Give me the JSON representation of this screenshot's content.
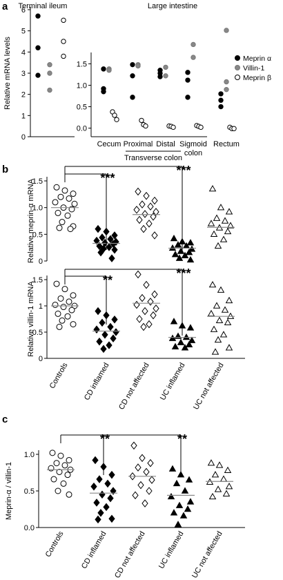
{
  "chart_data": [
    {
      "panel": "a",
      "type": "scatter",
      "ylabel": "Relative mRNA levels",
      "ylim": [
        0,
        6
      ],
      "yticks": [
        0,
        1,
        2,
        3,
        4,
        5,
        6
      ],
      "group_titles": [
        "Terminal ileum",
        "Large intestine"
      ],
      "categories": [
        "Cecum",
        "Proximal",
        "Distal",
        "Sigmoid\ncolon",
        "Rectum"
      ],
      "bracket_label": "Transverse colon",
      "legend": {
        "position": "right",
        "entries": [
          {
            "name": "Meprin α",
            "color": "#000000",
            "fill": "#000000"
          },
          {
            "name": "Villin-1",
            "color": "#777777",
            "fill": "#888888"
          },
          {
            "name": "Meprin β",
            "color": "#000000",
            "fill": "#ffffff"
          }
        ]
      },
      "ileum": {
        "meprin_alpha": [
          5.7,
          4.2,
          2.9
        ],
        "villin1": [
          3.4,
          3.0,
          2.2
        ],
        "meprin_beta": [
          5.5,
          4.5,
          3.8
        ]
      },
      "colon": {
        "meprin_alpha": [
          [
            1.38,
            0.92,
            0.85
          ],
          [
            1.48,
            1.22,
            0.72
          ],
          [
            1.35,
            1.28,
            1.2
          ],
          [
            1.3,
            1.12,
            0.72
          ],
          [
            0.8,
            0.65,
            0.5
          ]
        ],
        "villin1": [
          [
            1.38,
            1.35
          ],
          [
            1.48,
            1.45
          ],
          [
            1.42,
            1.22
          ],
          [
            1.95,
            1.65
          ],
          [
            2.28,
            1.08,
            0.9
          ]
        ],
        "meprin_beta": [
          [
            0.38,
            0.3,
            0.2
          ],
          [
            0.18,
            0.08,
            0.05
          ],
          [
            0.05,
            0.04,
            0.02
          ],
          [
            0.06,
            0.04,
            0.02
          ],
          [
            0.02,
            -0.01,
            -0.01
          ]
        ]
      }
    },
    {
      "panel": "b",
      "type": "scatter",
      "ylabel": "Relative meprin-α mRNA",
      "ylim": [
        0,
        1.5
      ],
      "yticks": [
        0,
        0.5,
        1,
        1.5
      ],
      "groups": [
        "Controls",
        "CD inflamed",
        "CD not affected",
        "UC inflamed",
        "UC not affected"
      ],
      "markers": [
        "circle-open",
        "diamond-filled",
        "diamond-open",
        "triangle-filled",
        "triangle-open"
      ],
      "medians": [
        1.0,
        0.33,
        0.87,
        0.24,
        0.63
      ],
      "significance": [
        {
          "label": "***",
          "from": 0,
          "to": 1
        },
        {
          "label": "***",
          "from": 0,
          "to": 3
        }
      ],
      "values": [
        [
          1.38,
          1.32,
          1.26,
          1.2,
          1.17,
          1.1,
          1.07,
          1.0,
          0.97,
          0.9,
          0.85,
          0.73,
          0.65,
          0.62,
          0.6
        ],
        [
          0.6,
          0.55,
          0.48,
          0.44,
          0.41,
          0.38,
          0.36,
          0.34,
          0.32,
          0.28,
          0.26,
          0.23,
          0.21,
          0.16,
          0.05
        ],
        [
          1.3,
          1.22,
          1.13,
          1.06,
          1.02,
          0.96,
          0.92,
          0.88,
          0.83,
          0.77,
          0.7,
          0.6,
          0.48
        ],
        [
          0.42,
          0.36,
          0.34,
          0.3,
          0.28,
          0.24,
          0.22,
          0.18,
          0.16,
          0.12,
          0.1,
          0.05,
          0.02
        ],
        [
          1.35,
          1.0,
          0.92,
          0.8,
          0.75,
          0.7,
          0.66,
          0.62,
          0.55,
          0.5,
          0.4,
          0.28
        ]
      ]
    },
    {
      "panel": "b",
      "type": "scatter",
      "ylabel": "Relative villin-1 mRNA",
      "ylim": [
        0,
        1.5
      ],
      "yticks": [
        0,
        0.5,
        1,
        1.5
      ],
      "groups": [
        "Controls",
        "CD inflamed",
        "CD not affected",
        "UC inflamed",
        "UC not affected"
      ],
      "markers": [
        "circle-open",
        "diamond-filled",
        "diamond-open",
        "triangle-filled",
        "triangle-open"
      ],
      "medians": [
        1.0,
        0.52,
        1.05,
        0.4,
        0.8
      ],
      "significance": [
        {
          "label": "**",
          "from": 0,
          "to": 1
        },
        {
          "label": "***",
          "from": 0,
          "to": 3
        }
      ],
      "values": [
        [
          1.42,
          1.32,
          1.2,
          1.14,
          1.08,
          1.02,
          1.0,
          0.98,
          0.92,
          0.85,
          0.8,
          0.72,
          0.65,
          0.6
        ],
        [
          0.9,
          0.82,
          0.74,
          0.68,
          0.6,
          0.55,
          0.5,
          0.45,
          0.38,
          0.32,
          0.25,
          0.18
        ],
        [
          1.6,
          1.4,
          1.22,
          1.15,
          1.08,
          1.02,
          0.95,
          0.9,
          0.82,
          0.75,
          0.65,
          0.6
        ],
        [
          0.7,
          0.62,
          0.58,
          0.42,
          0.4,
          0.38,
          0.34,
          0.3,
          0.26,
          0.22,
          0.2
        ],
        [
          1.4,
          1.3,
          1.1,
          1.0,
          0.92,
          0.85,
          0.8,
          0.72,
          0.68,
          0.55,
          0.45,
          0.35,
          0.2,
          0.12
        ]
      ]
    },
    {
      "panel": "c",
      "type": "scatter",
      "ylabel": "Meprin-α / villin-1",
      "ylim": [
        0,
        1.0
      ],
      "yticks": [
        0,
        0.5,
        1.0
      ],
      "groups": [
        "Controls",
        "CD inflamed",
        "CD not affected",
        "UC inflamed",
        "UC not affected"
      ],
      "markers": [
        "circle-open",
        "diamond-filled",
        "diamond-open",
        "triangle-filled",
        "triangle-open"
      ],
      "medians": [
        0.79,
        0.47,
        0.7,
        0.44,
        0.63
      ],
      "significance": [
        {
          "label": "**",
          "from": 0,
          "to": 1
        },
        {
          "label": "**",
          "from": 0,
          "to": 3
        }
      ],
      "values": [
        [
          1.02,
          0.98,
          0.92,
          0.88,
          0.85,
          0.81,
          0.79,
          0.76,
          0.72,
          0.66,
          0.6,
          0.5,
          0.45
        ],
        [
          0.92,
          0.83,
          0.72,
          0.66,
          0.6,
          0.56,
          0.5,
          0.45,
          0.4,
          0.34,
          0.28,
          0.2,
          0.12,
          0.11
        ],
        [
          1.12,
          0.95,
          0.88,
          0.82,
          0.76,
          0.7,
          0.65,
          0.58,
          0.5,
          0.44,
          0.33
        ],
        [
          0.8,
          0.72,
          0.65,
          0.6,
          0.5,
          0.42,
          0.35,
          0.3,
          0.25,
          0.2,
          0.16,
          0.04
        ],
        [
          0.88,
          0.85,
          0.78,
          0.72,
          0.66,
          0.62,
          0.56,
          0.52,
          0.46,
          0.42
        ]
      ]
    }
  ],
  "panel_letters": [
    "a",
    "b",
    "c"
  ]
}
